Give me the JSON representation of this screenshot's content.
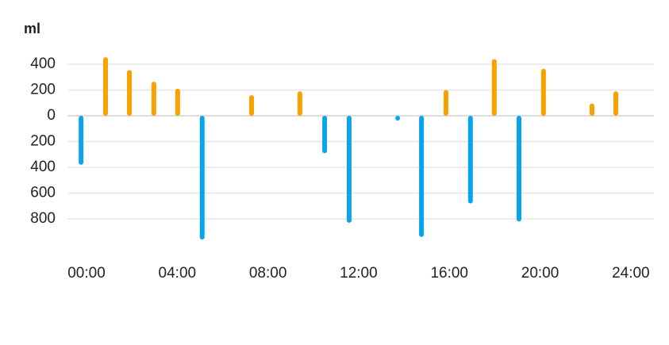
{
  "chart_data": {
    "type": "bar",
    "y_label": "ml",
    "x": [
      -0.24,
      0.84,
      1.89,
      2.97,
      4.02,
      5.1,
      7.28,
      9.41,
      10.5,
      11.58,
      13.72,
      14.77,
      15.85,
      16.93,
      17.98,
      19.07,
      20.15,
      22.29,
      23.34
    ],
    "values": [
      -380,
      455,
      355,
      265,
      210,
      -960,
      160,
      190,
      -290,
      -830,
      -20,
      -940,
      200,
      -680,
      440,
      -820,
      365,
      95,
      190
    ],
    "positive_color": "#f8a100",
    "negative_color": "#08a5ec",
    "xlim": [
      -0.84,
      25.02
    ],
    "xticks": [
      {
        "value": 0,
        "label": "00:00"
      },
      {
        "value": 4,
        "label": "04:00"
      },
      {
        "value": 8,
        "label": "08:00"
      },
      {
        "value": 12,
        "label": "12:00"
      },
      {
        "value": 16,
        "label": "16:00"
      },
      {
        "value": 20,
        "label": "20:00"
      },
      {
        "value": 24,
        "label": "24:00"
      }
    ],
    "ylim": [
      -1000,
      500
    ],
    "yticks": [
      400,
      200,
      0,
      {
        "value": -200,
        "label": "200"
      },
      {
        "value": -400,
        "label": "400"
      },
      {
        "value": -600,
        "label": "600"
      },
      {
        "value": -800,
        "label": "800"
      }
    ],
    "grid": true
  }
}
